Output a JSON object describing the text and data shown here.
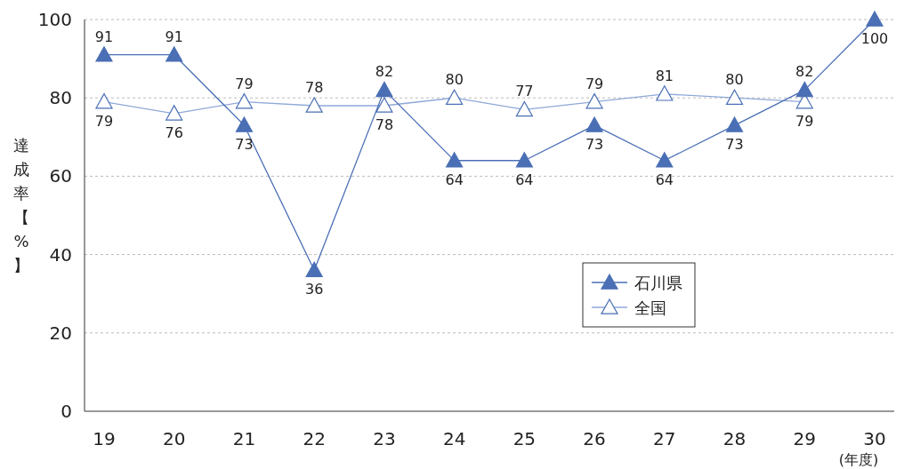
{
  "chart_data": {
    "type": "line",
    "ylabel": "達成率【%】",
    "xlabel": "(年度)",
    "categories": [
      "19",
      "20",
      "21",
      "22",
      "23",
      "24",
      "25",
      "26",
      "27",
      "28",
      "29",
      "30"
    ],
    "series": [
      {
        "name": "石川県",
        "color": "#4a6fb5",
        "values": [
          91,
          91,
          73,
          36,
          82,
          64,
          64,
          73,
          64,
          73,
          82,
          100
        ]
      },
      {
        "name": "全国",
        "color": "#8fa8d8",
        "values": [
          79,
          76,
          79,
          78,
          78,
          80,
          77,
          79,
          81,
          80,
          79,
          null
        ]
      }
    ],
    "ylim": [
      0,
      100
    ],
    "yticks": [
      0,
      20,
      40,
      60,
      80,
      100
    ],
    "grid": "y",
    "legend": "center right",
    "marker": "triangle",
    "line_style": "solid",
    "data_labels": true
  }
}
